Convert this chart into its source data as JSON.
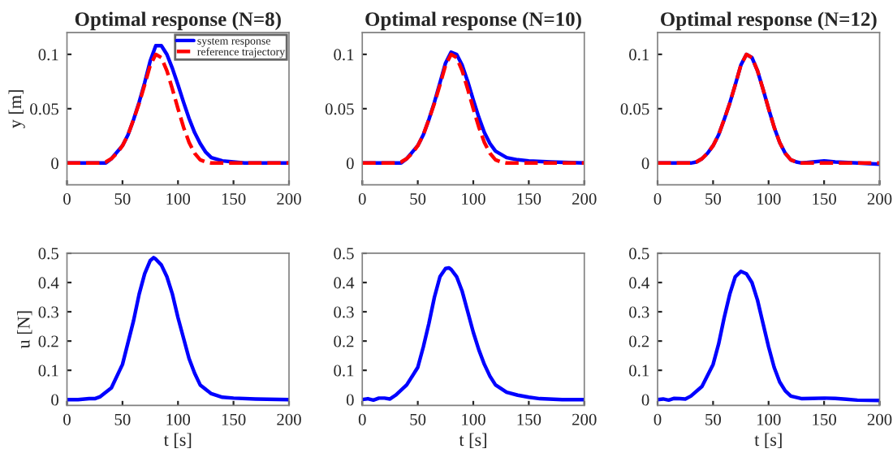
{
  "chart_data": [
    {
      "type": "line",
      "title": "Optimal response (N=8)",
      "ylabel": "y [m]",
      "xlim": [
        0,
        200
      ],
      "xticks": [
        0,
        50,
        100,
        150,
        200
      ],
      "ylim": [
        -0.02,
        0.12
      ],
      "yticks": [
        0,
        0.05,
        0.1
      ],
      "grid": false,
      "legend": "top right",
      "series": [
        {
          "name": "system response",
          "color": "#0000ff",
          "line_style": "solid",
          "x": [
            0,
            35,
            40,
            50,
            55,
            60,
            65,
            70,
            75,
            80,
            85,
            90,
            95,
            100,
            105,
            110,
            115,
            120,
            125,
            130,
            140,
            150,
            160,
            200
          ],
          "values": [
            0,
            0,
            0.004,
            0.016,
            0.026,
            0.04,
            0.056,
            0.074,
            0.094,
            0.108,
            0.108,
            0.1,
            0.087,
            0.072,
            0.056,
            0.041,
            0.028,
            0.018,
            0.01,
            0.005,
            0.002,
            0.001,
            0,
            0
          ]
        },
        {
          "name": "reference trajectory",
          "color": "#ff0000",
          "line_style": "dashed",
          "x": [
            0,
            30,
            35,
            40,
            45,
            50,
            55,
            60,
            65,
            70,
            75,
            80,
            85,
            90,
            95,
            100,
            105,
            110,
            115,
            120,
            125,
            130,
            200
          ],
          "values": [
            0,
            0,
            0.001,
            0.004,
            0.009,
            0.016,
            0.026,
            0.04,
            0.055,
            0.072,
            0.09,
            0.1,
            0.097,
            0.085,
            0.068,
            0.05,
            0.033,
            0.019,
            0.009,
            0.003,
            0.001,
            0,
            0
          ]
        }
      ]
    },
    {
      "type": "line",
      "title": "Optimal response (N=10)",
      "xlim": [
        0,
        200
      ],
      "xticks": [
        0,
        50,
        100,
        150,
        200
      ],
      "ylim": [
        -0.02,
        0.12
      ],
      "yticks": [
        0,
        0.05,
        0.1
      ],
      "grid": false,
      "series": [
        {
          "color": "#0000ff",
          "line_style": "solid",
          "x": [
            0,
            35,
            40,
            50,
            55,
            60,
            65,
            70,
            75,
            80,
            85,
            90,
            95,
            100,
            105,
            110,
            115,
            120,
            130,
            140,
            150,
            170,
            200
          ],
          "values": [
            0,
            0,
            0.004,
            0.016,
            0.026,
            0.04,
            0.056,
            0.074,
            0.092,
            0.102,
            0.1,
            0.09,
            0.075,
            0.058,
            0.042,
            0.028,
            0.018,
            0.011,
            0.005,
            0.003,
            0.002,
            0.001,
            0
          ]
        },
        {
          "color": "#ff0000",
          "line_style": "dashed",
          "x": [
            0,
            30,
            35,
            40,
            45,
            50,
            55,
            60,
            65,
            70,
            75,
            80,
            85,
            90,
            95,
            100,
            105,
            110,
            115,
            120,
            125,
            130,
            200
          ],
          "values": [
            0,
            0,
            0.001,
            0.004,
            0.009,
            0.016,
            0.026,
            0.04,
            0.055,
            0.072,
            0.09,
            0.1,
            0.097,
            0.085,
            0.068,
            0.05,
            0.033,
            0.019,
            0.009,
            0.003,
            0.001,
            0,
            0
          ]
        }
      ]
    },
    {
      "type": "line",
      "title": "Optimal response (N=12)",
      "xlim": [
        0,
        200
      ],
      "xticks": [
        0,
        50,
        100,
        150,
        200
      ],
      "ylim": [
        -0.02,
        0.12
      ],
      "yticks": [
        0,
        0.05,
        0.1
      ],
      "grid": false,
      "series": [
        {
          "color": "#0000ff",
          "line_style": "solid",
          "x": [
            0,
            30,
            35,
            40,
            45,
            50,
            55,
            60,
            65,
            70,
            75,
            80,
            85,
            90,
            95,
            100,
            105,
            110,
            115,
            120,
            125,
            130,
            140,
            150,
            160,
            180,
            200
          ],
          "values": [
            0,
            0,
            0.001,
            0.004,
            0.009,
            0.016,
            0.026,
            0.04,
            0.055,
            0.072,
            0.09,
            0.1,
            0.097,
            0.085,
            0.068,
            0.05,
            0.033,
            0.019,
            0.009,
            0.003,
            0.001,
            0,
            0.001,
            0.002,
            0.001,
            0,
            -0.001
          ]
        },
        {
          "color": "#ff0000",
          "line_style": "dashed",
          "x": [
            0,
            30,
            35,
            40,
            45,
            50,
            55,
            60,
            65,
            70,
            75,
            80,
            85,
            90,
            95,
            100,
            105,
            110,
            115,
            120,
            125,
            130,
            200
          ],
          "values": [
            0,
            0,
            0.001,
            0.004,
            0.009,
            0.016,
            0.026,
            0.04,
            0.055,
            0.072,
            0.09,
            0.1,
            0.097,
            0.085,
            0.068,
            0.05,
            0.033,
            0.019,
            0.009,
            0.003,
            0.001,
            0,
            0
          ]
        }
      ]
    },
    {
      "type": "line",
      "xlabel": "t [s]",
      "ylabel": "u [N]",
      "xlim": [
        0,
        200
      ],
      "xticks": [
        0,
        50,
        100,
        150,
        200
      ],
      "ylim": [
        -0.02,
        0.5
      ],
      "yticks": [
        0,
        0.1,
        0.2,
        0.3,
        0.4,
        0.5
      ],
      "grid": false,
      "series": [
        {
          "color": "#0000ff",
          "line_style": "solid",
          "x": [
            0,
            10,
            20,
            25,
            30,
            40,
            50,
            60,
            65,
            70,
            75,
            78,
            80,
            85,
            90,
            95,
            100,
            105,
            110,
            115,
            120,
            130,
            140,
            150,
            170,
            200
          ],
          "values": [
            0,
            0,
            0.003,
            0.003,
            0.01,
            0.04,
            0.12,
            0.27,
            0.36,
            0.43,
            0.475,
            0.485,
            0.48,
            0.46,
            0.42,
            0.36,
            0.28,
            0.21,
            0.14,
            0.09,
            0.05,
            0.02,
            0.008,
            0.005,
            0.002,
            0
          ]
        }
      ]
    },
    {
      "type": "line",
      "xlabel": "t [s]",
      "xlim": [
        0,
        200
      ],
      "xticks": [
        0,
        50,
        100,
        150,
        200
      ],
      "ylim": [
        -0.02,
        0.5
      ],
      "yticks": [
        0,
        0.1,
        0.2,
        0.3,
        0.4,
        0.5
      ],
      "grid": false,
      "series": [
        {
          "color": "#0000ff",
          "line_style": "solid",
          "x": [
            0,
            5,
            10,
            15,
            20,
            25,
            30,
            40,
            50,
            55,
            60,
            65,
            70,
            75,
            78,
            80,
            85,
            90,
            95,
            100,
            105,
            110,
            115,
            120,
            130,
            140,
            150,
            160,
            180,
            200
          ],
          "values": [
            0,
            0.003,
            -0.002,
            0.005,
            0.005,
            0.002,
            0.015,
            0.05,
            0.11,
            0.18,
            0.26,
            0.35,
            0.42,
            0.448,
            0.45,
            0.445,
            0.42,
            0.37,
            0.3,
            0.23,
            0.17,
            0.12,
            0.08,
            0.05,
            0.025,
            0.015,
            0.008,
            0.003,
            0,
            0
          ]
        }
      ]
    },
    {
      "type": "line",
      "xlabel": "t [s]",
      "xlim": [
        0,
        200
      ],
      "xticks": [
        0,
        50,
        100,
        150,
        200
      ],
      "ylim": [
        -0.02,
        0.5
      ],
      "yticks": [
        0,
        0.1,
        0.2,
        0.3,
        0.4,
        0.5
      ],
      "grid": false,
      "series": [
        {
          "color": "#0000ff",
          "line_style": "solid",
          "x": [
            0,
            5,
            10,
            15,
            20,
            25,
            30,
            40,
            50,
            55,
            60,
            65,
            70,
            75,
            80,
            85,
            90,
            95,
            100,
            105,
            110,
            115,
            120,
            130,
            140,
            150,
            160,
            170,
            180,
            200
          ],
          "values": [
            0,
            0.002,
            -0.002,
            0.004,
            0.003,
            0.002,
            0.012,
            0.045,
            0.12,
            0.19,
            0.28,
            0.36,
            0.42,
            0.438,
            0.43,
            0.4,
            0.34,
            0.26,
            0.18,
            0.11,
            0.06,
            0.03,
            0.012,
            0.003,
            0.004,
            0.005,
            0.004,
            0.001,
            -0.002,
            -0.003
          ]
        }
      ]
    }
  ]
}
